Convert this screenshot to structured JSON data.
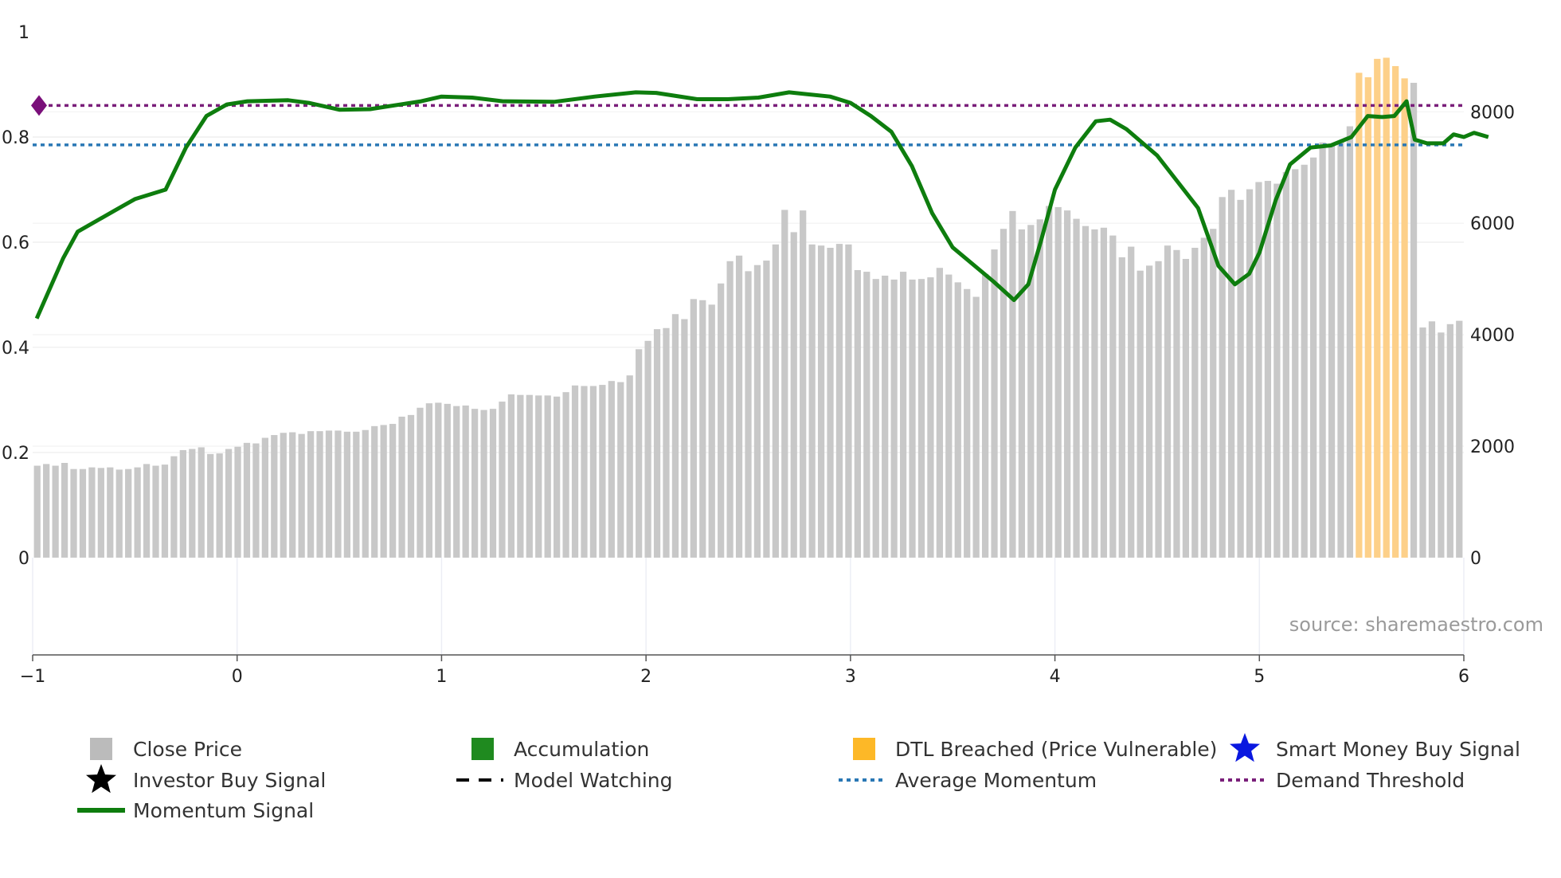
{
  "chart_data": {
    "type": "bar",
    "title": "",
    "xlabel": "",
    "ylabel": "",
    "xlim": [
      -1,
      6
    ],
    "ylim_left": [
      -0.185,
      1
    ],
    "ylim_right": [
      -1745,
      9434
    ],
    "x_ticks": [
      "−1",
      "0",
      "1",
      "2",
      "3",
      "4",
      "5",
      "6"
    ],
    "y_left_ticks": [
      "0",
      "0.2",
      "0.4",
      "0.6",
      "0.8",
      "1"
    ],
    "y_right_ticks": [
      "0",
      "2000",
      "4000",
      "6000",
      "8000"
    ],
    "average_momentum": 0.785,
    "demand_threshold": 0.86,
    "close_price": [
      1650,
      1680,
      1650,
      1700,
      1590,
      1590,
      1620,
      1610,
      1620,
      1580,
      1590,
      1620,
      1680,
      1650,
      1670,
      1820,
      1930,
      1950,
      1980,
      1860,
      1870,
      1950,
      1990,
      2060,
      2050,
      2150,
      2200,
      2240,
      2250,
      2220,
      2270,
      2270,
      2280,
      2280,
      2260,
      2260,
      2290,
      2360,
      2380,
      2400,
      2530,
      2560,
      2690,
      2770,
      2780,
      2760,
      2720,
      2730,
      2670,
      2650,
      2670,
      2800,
      2930,
      2920,
      2920,
      2910,
      2910,
      2890,
      2970,
      3090,
      3080,
      3080,
      3100,
      3170,
      3150,
      3270,
      3740,
      3890,
      4100,
      4120,
      4370,
      4280,
      4640,
      4620,
      4540,
      4920,
      5320,
      5420,
      5140,
      5250,
      5330,
      5620,
      6240,
      5840,
      6230,
      5620,
      5600,
      5560,
      5630,
      5620,
      5160,
      5130,
      5000,
      5060,
      4990,
      5130,
      4990,
      5000,
      5030,
      5200,
      5080,
      4940,
      4820,
      4680,
      5090,
      5530,
      5900,
      6220,
      5890,
      5970,
      6070,
      6310,
      6290,
      6230,
      6080,
      5950,
      5890,
      5920,
      5780,
      5390,
      5580,
      5150,
      5240,
      5320,
      5600,
      5520,
      5360,
      5560,
      5740,
      5900,
      6470,
      6600,
      6420,
      6610,
      6740,
      6760,
      6710,
      6920,
      6970,
      7050,
      7180,
      7450,
      7410,
      7460,
      7740,
      8700,
      8620,
      8950,
      8970,
      8820,
      8600,
      8520,
      4130,
      4240,
      4040,
      4190,
      4250
    ],
    "momentum_signal": [
      [
        -0.98,
        0.455
      ],
      [
        -0.85,
        0.57
      ],
      [
        -0.78,
        0.62
      ],
      [
        -0.6,
        0.66
      ],
      [
        -0.5,
        0.682
      ],
      [
        -0.35,
        0.7
      ],
      [
        -0.25,
        0.78
      ],
      [
        -0.15,
        0.84
      ],
      [
        -0.05,
        0.862
      ],
      [
        0.05,
        0.868
      ],
      [
        0.25,
        0.87
      ],
      [
        0.35,
        0.865
      ],
      [
        0.5,
        0.852
      ],
      [
        0.65,
        0.853
      ],
      [
        0.9,
        0.868
      ],
      [
        1.0,
        0.877
      ],
      [
        1.15,
        0.875
      ],
      [
        1.3,
        0.868
      ],
      [
        1.55,
        0.867
      ],
      [
        1.75,
        0.877
      ],
      [
        1.95,
        0.885
      ],
      [
        2.05,
        0.884
      ],
      [
        2.25,
        0.872
      ],
      [
        2.4,
        0.872
      ],
      [
        2.55,
        0.875
      ],
      [
        2.7,
        0.885
      ],
      [
        2.9,
        0.877
      ],
      [
        3.0,
        0.865
      ],
      [
        3.1,
        0.84
      ],
      [
        3.2,
        0.81
      ],
      [
        3.3,
        0.745
      ],
      [
        3.4,
        0.655
      ],
      [
        3.5,
        0.59
      ],
      [
        3.7,
        0.525
      ],
      [
        3.8,
        0.49
      ],
      [
        3.87,
        0.52
      ],
      [
        3.93,
        0.6
      ],
      [
        4.0,
        0.7
      ],
      [
        4.1,
        0.78
      ],
      [
        4.2,
        0.83
      ],
      [
        4.27,
        0.833
      ],
      [
        4.35,
        0.815
      ],
      [
        4.5,
        0.765
      ],
      [
        4.7,
        0.665
      ],
      [
        4.8,
        0.555
      ],
      [
        4.88,
        0.52
      ],
      [
        4.95,
        0.54
      ],
      [
        5.0,
        0.58
      ],
      [
        5.08,
        0.68
      ],
      [
        5.15,
        0.748
      ],
      [
        5.25,
        0.78
      ],
      [
        5.35,
        0.784
      ],
      [
        5.45,
        0.8
      ],
      [
        5.53,
        0.84
      ],
      [
        5.6,
        0.838
      ],
      [
        5.66,
        0.84
      ],
      [
        5.72,
        0.868
      ],
      [
        5.76,
        0.795
      ],
      [
        5.82,
        0.788
      ],
      [
        5.9,
        0.788
      ],
      [
        5.95,
        0.805
      ],
      [
        6.0,
        0.8
      ],
      [
        6.05,
        0.808
      ],
      [
        6.12,
        0.8
      ]
    ],
    "dtl_breached_range": [
      5.45,
      5.75
    ],
    "marker_x": -1,
    "series": [
      {
        "name": "Close Price",
        "color": "#bbbbbb"
      },
      {
        "name": "Accumulation",
        "color": "#1f8a1f"
      },
      {
        "name": "DTL Breached (Price Vulnerable)",
        "color": "#fdb827"
      },
      {
        "name": "Smart Money Buy Signal",
        "color": "#0a18e0"
      },
      {
        "name": "Investor Buy Signal",
        "color": "#000000"
      },
      {
        "name": "Model Watching",
        "color": "#000000"
      },
      {
        "name": "Average Momentum",
        "color": "#2a78b5"
      },
      {
        "name": "Demand Threshold",
        "color": "#7a1f7a"
      },
      {
        "name": "Momentum Signal",
        "color": "#0e7d0e"
      }
    ],
    "legend": {
      "close_price": "Close Price",
      "accumulation": "Accumulation",
      "dtl": "DTL Breached (Price Vulnerable)",
      "smart_money": "Smart Money Buy Signal",
      "investor_buy": "Investor Buy Signal",
      "model_watching": "Model Watching",
      "avg_momentum": "Average Momentum",
      "demand_threshold": "Demand Threshold",
      "momentum_signal": "Momentum Signal"
    },
    "source": "source: sharemaestro.com"
  }
}
